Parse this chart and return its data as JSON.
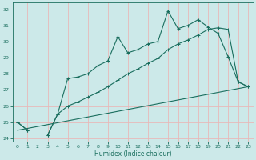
{
  "title": "",
  "xlabel": "Humidex (Indice chaleur)",
  "xlim": [
    -0.5,
    23.5
  ],
  "ylim": [
    23.8,
    32.4
  ],
  "yticks": [
    24,
    25,
    26,
    27,
    28,
    29,
    30,
    31,
    32
  ],
  "xticks": [
    0,
    1,
    2,
    3,
    4,
    5,
    6,
    7,
    8,
    9,
    10,
    11,
    12,
    13,
    14,
    15,
    16,
    17,
    18,
    19,
    20,
    21,
    22,
    23
  ],
  "bg_color": "#cce9e9",
  "line_color": "#1a6e5e",
  "grid_color": "#e8b8b8",
  "line1_x": [
    0,
    1,
    2,
    3,
    4,
    5,
    6,
    7,
    8,
    9,
    10,
    11,
    12,
    13,
    14,
    15,
    16,
    17,
    18,
    19,
    20,
    21,
    22,
    23
  ],
  "line1_y": [
    25.0,
    24.5,
    null,
    24.2,
    25.5,
    27.7,
    27.8,
    28.0,
    28.5,
    28.8,
    30.3,
    29.3,
    29.5,
    29.85,
    30.0,
    31.9,
    30.8,
    31.0,
    31.35,
    30.9,
    30.5,
    29.05,
    27.5,
    27.2
  ],
  "line2_x": [
    0,
    1,
    2,
    3,
    4,
    5,
    6,
    7,
    8,
    9,
    10,
    11,
    12,
    13,
    14,
    15,
    16,
    17,
    18,
    19,
    20,
    21,
    22,
    23
  ],
  "line2_y": [
    25.0,
    24.5,
    null,
    24.2,
    25.5,
    26.0,
    26.25,
    26.55,
    26.85,
    27.2,
    27.6,
    28.0,
    28.3,
    28.65,
    28.95,
    29.5,
    29.85,
    30.1,
    30.4,
    30.75,
    30.85,
    30.75,
    27.5,
    27.2
  ],
  "line3_x": [
    0,
    23
  ],
  "line3_y": [
    24.5,
    27.2
  ]
}
